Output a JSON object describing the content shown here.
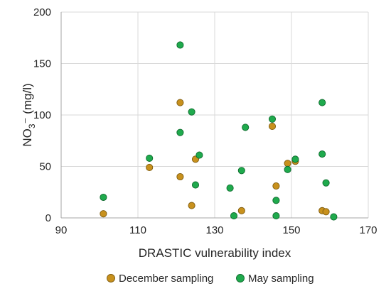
{
  "chart_data": {
    "type": "scatter",
    "title": "",
    "xlabel": "DRASTIC vulnerability index",
    "ylabel_parts": [
      "NO",
      "3",
      "⁻ (mg/l)"
    ],
    "xlim": [
      90,
      170
    ],
    "ylim": [
      0,
      200
    ],
    "xticks": [
      90,
      110,
      130,
      150,
      170
    ],
    "yticks": [
      0,
      50,
      100,
      150,
      200
    ],
    "grid": true,
    "legend_position": "bottom",
    "series": [
      {
        "name": "December sampling",
        "color": "#c8911d",
        "stroke": "#7f5c0f",
        "points": [
          [
            101,
            4
          ],
          [
            113,
            49
          ],
          [
            121,
            112
          ],
          [
            121,
            40
          ],
          [
            124,
            12
          ],
          [
            125,
            57
          ],
          [
            137,
            7
          ],
          [
            145,
            89
          ],
          [
            146,
            31
          ],
          [
            149,
            53
          ],
          [
            151,
            55
          ],
          [
            158,
            7
          ],
          [
            159,
            6
          ]
        ]
      },
      {
        "name": "May sampling",
        "color": "#1faa4d",
        "stroke": "#0f6b2e",
        "points": [
          [
            101,
            20
          ],
          [
            113,
            58
          ],
          [
            121,
            168
          ],
          [
            121,
            83
          ],
          [
            124,
            103
          ],
          [
            125,
            32
          ],
          [
            126,
            61
          ],
          [
            134,
            29
          ],
          [
            135,
            2
          ],
          [
            137,
            46
          ],
          [
            138,
            88
          ],
          [
            145,
            96
          ],
          [
            146,
            17
          ],
          [
            146,
            2
          ],
          [
            149,
            47
          ],
          [
            151,
            57
          ],
          [
            158,
            112
          ],
          [
            158,
            62
          ],
          [
            159,
            34
          ],
          [
            161,
            1
          ]
        ]
      }
    ]
  }
}
